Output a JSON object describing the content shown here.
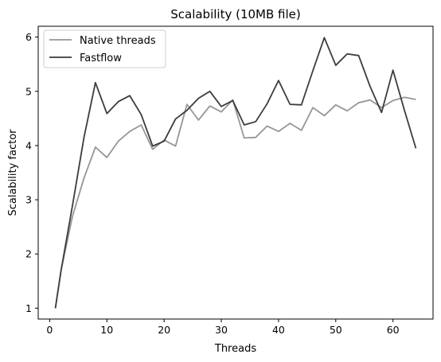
{
  "chart_data": {
    "type": "line",
    "title": "Scalability (10MB file)",
    "xlabel": "Threads",
    "ylabel": "Scalability factor",
    "xlim": [
      -2,
      67
    ],
    "ylim": [
      0.8,
      6.2
    ],
    "xticks": [
      0,
      10,
      20,
      30,
      40,
      50,
      60
    ],
    "yticks": [
      1,
      2,
      3,
      4,
      5,
      6
    ],
    "grid": false,
    "legend_position": "top-left",
    "series": [
      {
        "name": "Native threads",
        "color": "#969696",
        "x": [
          1,
          2,
          4,
          6,
          8,
          10,
          12,
          14,
          16,
          18,
          20,
          22,
          24,
          26,
          28,
          30,
          32,
          34,
          36,
          38,
          40,
          42,
          44,
          46,
          48,
          50,
          52,
          54,
          56,
          58,
          60,
          62,
          64
        ],
        "y": [
          1.0,
          1.7,
          2.7,
          3.4,
          3.97,
          3.78,
          4.08,
          4.26,
          4.38,
          3.93,
          4.1,
          3.99,
          4.76,
          4.47,
          4.73,
          4.62,
          4.84,
          4.14,
          4.15,
          4.36,
          4.26,
          4.41,
          4.28,
          4.7,
          4.55,
          4.75,
          4.64,
          4.79,
          4.84,
          4.7,
          4.83,
          4.89,
          4.85
        ]
      },
      {
        "name": "Fastflow",
        "color": "#3c3c3c",
        "x": [
          1,
          2,
          4,
          6,
          8,
          10,
          12,
          14,
          16,
          18,
          20,
          22,
          24,
          26,
          28,
          30,
          32,
          34,
          36,
          38,
          40,
          42,
          44,
          46,
          48,
          50,
          52,
          54,
          56,
          58,
          60,
          62,
          64
        ],
        "y": [
          1.0,
          1.7,
          2.9,
          4.15,
          5.16,
          4.59,
          4.81,
          4.92,
          4.57,
          3.99,
          4.08,
          4.49,
          4.65,
          4.87,
          5.0,
          4.72,
          4.83,
          4.38,
          4.44,
          4.77,
          5.2,
          4.76,
          4.75,
          5.38,
          5.99,
          5.48,
          5.69,
          5.66,
          5.09,
          4.61,
          5.39,
          4.65,
          3.95
        ]
      }
    ]
  }
}
